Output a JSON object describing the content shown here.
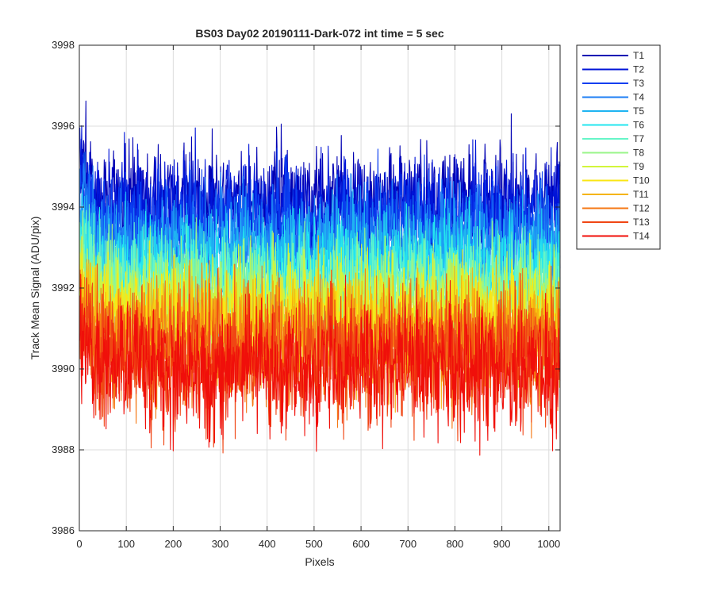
{
  "chart_data": {
    "type": "line",
    "title": "BS03 Day02 20190111-Dark-072 int time = 5 sec",
    "xlabel": "Pixels",
    "ylabel": "Track Mean Signal (ADU/pix)",
    "xlim": [
      0,
      1024
    ],
    "ylim": [
      3986,
      3998
    ],
    "xticks": [
      0,
      100,
      200,
      300,
      400,
      500,
      600,
      700,
      800,
      900,
      1000
    ],
    "yticks": [
      3986,
      3988,
      3990,
      3992,
      3994,
      3996,
      3998
    ],
    "grid": true,
    "legend_position": "outside-top-right",
    "x": {
      "start": 1,
      "end": 1024,
      "step": 1
    },
    "series": [
      {
        "name": "T1",
        "color": "#0000b3",
        "mean": 3994.2,
        "noise_std": 0.65,
        "min": 3992.0,
        "max": 3997.0
      },
      {
        "name": "T2",
        "color": "#0014d8",
        "mean": 3993.9,
        "noise_std": 0.65,
        "min": 3991.6,
        "max": 3996.3
      },
      {
        "name": "T3",
        "color": "#0a3ef0",
        "mean": 3993.5,
        "noise_std": 0.65,
        "min": 3991.2,
        "max": 3996.0
      },
      {
        "name": "T4",
        "color": "#1d7ef5",
        "mean": 3993.1,
        "noise_std": 0.65,
        "min": 3990.8,
        "max": 3995.6
      },
      {
        "name": "T5",
        "color": "#1fb4f2",
        "mean": 3992.8,
        "noise_std": 0.65,
        "min": 3990.4,
        "max": 3995.2
      },
      {
        "name": "T6",
        "color": "#23e6ef",
        "mean": 3992.4,
        "noise_std": 0.65,
        "min": 3990.0,
        "max": 3994.9
      },
      {
        "name": "T7",
        "color": "#66f5c8",
        "mean": 3992.1,
        "noise_std": 0.65,
        "min": 3989.6,
        "max": 3994.6
      },
      {
        "name": "T8",
        "color": "#9af58a",
        "mean": 3991.8,
        "noise_std": 0.65,
        "min": 3987.4,
        "max": 3994.3
      },
      {
        "name": "T9",
        "color": "#d2f53c",
        "mean": 3991.5,
        "noise_std": 0.65,
        "min": 3987.5,
        "max": 3994.0
      },
      {
        "name": "T10",
        "color": "#fae614",
        "mean": 3991.2,
        "noise_std": 0.65,
        "min": 3987.6,
        "max": 3993.8
      },
      {
        "name": "T11",
        "color": "#f5b40f",
        "mean": 3990.9,
        "noise_std": 0.7,
        "min": 3987.2,
        "max": 3993.6
      },
      {
        "name": "T12",
        "color": "#f57814",
        "mean": 3990.6,
        "noise_std": 0.75,
        "min": 3987.0,
        "max": 3993.4
      },
      {
        "name": "T13",
        "color": "#f04614",
        "mean": 3990.3,
        "noise_std": 0.8,
        "min": 3986.8,
        "max": 3993.2
      },
      {
        "name": "T14",
        "color": "#f00f0a",
        "mean": 3990.0,
        "noise_std": 0.8,
        "min": 3986.6,
        "max": 3993.0
      }
    ]
  }
}
